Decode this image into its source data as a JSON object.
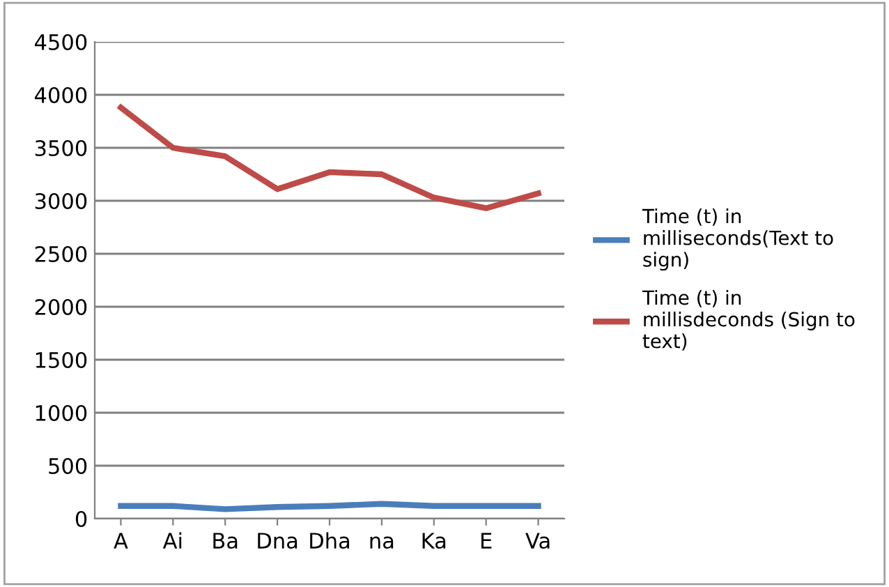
{
  "chart_data": {
    "type": "line",
    "categories": [
      "A",
      "Ai",
      "Ba",
      "Dna",
      "Dha",
      "na",
      "Ka",
      "E",
      "Va"
    ],
    "series": [
      {
        "name": "Time (t) in\nmilliseconds(Text to\nsign)",
        "color": "#4a7ebb",
        "values": [
          120,
          120,
          90,
          110,
          120,
          140,
          120,
          120,
          120
        ]
      },
      {
        "name": "Time (t) in\nmillisdeconds (Sign to\ntext)",
        "color": "#be4b48",
        "values": [
          3880,
          3500,
          3420,
          3110,
          3270,
          3250,
          3030,
          2930,
          3070
        ]
      }
    ],
    "ylim": [
      0,
      4500
    ],
    "yticks": [
      0,
      500,
      1000,
      1500,
      2000,
      2500,
      3000,
      3500,
      4000,
      4500
    ],
    "grid": "y",
    "legend": "right",
    "marker": "none"
  }
}
